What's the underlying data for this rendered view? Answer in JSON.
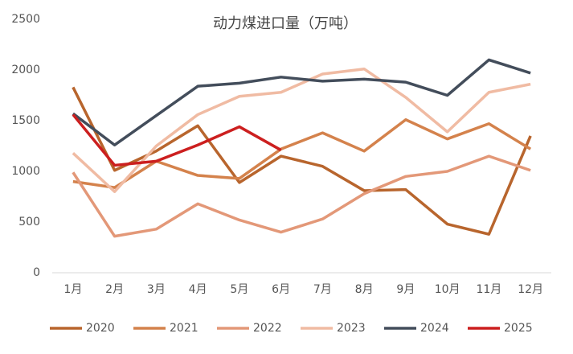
{
  "chart_data": {
    "type": "line",
    "title": "动力煤进口量（万吨）",
    "categories": [
      "1月",
      "2月",
      "3月",
      "4月",
      "5月",
      "6月",
      "7月",
      "8月",
      "9月",
      "10月",
      "11月",
      "12月"
    ],
    "series": [
      {
        "name": "2020",
        "color": "#b8652d",
        "values": [
          1830,
          1010,
          1200,
          1450,
          890,
          1150,
          1050,
          810,
          820,
          480,
          380,
          1350
        ]
      },
      {
        "name": "2021",
        "color": "#d4824c",
        "values": [
          900,
          840,
          1100,
          960,
          930,
          1220,
          1380,
          1200,
          1510,
          1320,
          1470,
          1220
        ]
      },
      {
        "name": "2022",
        "color": "#e39878",
        "values": [
          990,
          360,
          430,
          680,
          520,
          400,
          530,
          780,
          950,
          1000,
          1150,
          1010
        ]
      },
      {
        "name": "2023",
        "color": "#f0bba3",
        "values": [
          1180,
          800,
          1250,
          1560,
          1740,
          1780,
          1960,
          2010,
          1730,
          1390,
          1780,
          1860
        ]
      },
      {
        "name": "2024",
        "color": "#434d5b",
        "values": [
          1570,
          1260,
          1550,
          1840,
          1870,
          1930,
          1890,
          1910,
          1880,
          1750,
          2100,
          1970
        ]
      },
      {
        "name": "2025",
        "color": "#cc1f1f",
        "values": [
          1560,
          1060,
          1100,
          1260,
          1440,
          1210,
          null,
          null,
          null,
          null,
          null,
          null
        ]
      }
    ],
    "ylim": [
      0,
      2500
    ],
    "yticks": [
      0,
      500,
      1000,
      1500,
      2000,
      2500
    ]
  }
}
